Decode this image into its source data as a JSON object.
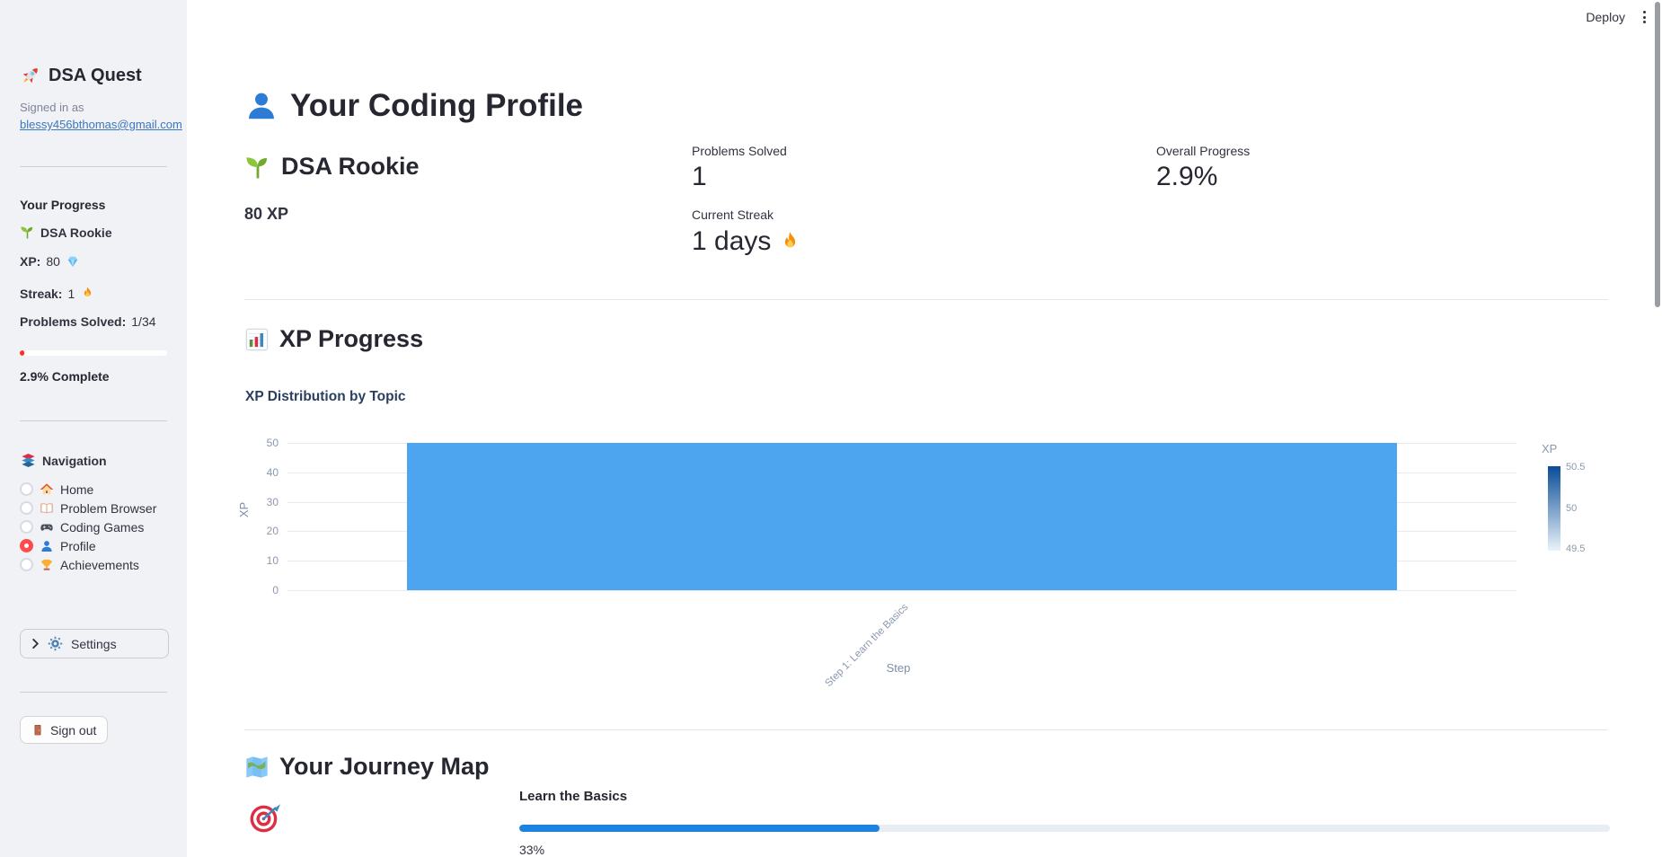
{
  "toolbar": {
    "deploy_label": "Deploy"
  },
  "sidebar": {
    "title": "DSA Quest",
    "signed_in_label": "Signed in as",
    "email": "blessy456bthomas@gmail.com",
    "progress": {
      "heading": "Your Progress",
      "rank": "DSA Rookie",
      "xp_label": "XP:",
      "xp_value": "80",
      "streak_label": "Streak:",
      "streak_value": "1",
      "problems_label": "Problems Solved:",
      "problems_value": "1/34",
      "progress_pct": 2.9,
      "complete_text": "2.9% Complete"
    },
    "navigation": {
      "heading": "Navigation",
      "items": [
        {
          "label": "Home",
          "selected": false
        },
        {
          "label": "Problem Browser",
          "selected": false
        },
        {
          "label": "Coding Games",
          "selected": false
        },
        {
          "label": "Profile",
          "selected": true
        },
        {
          "label": "Achievements",
          "selected": false
        }
      ]
    },
    "settings_label": "Settings",
    "signout_label": "Sign out"
  },
  "main": {
    "page_title": "Your Coding Profile",
    "rank_title": "DSA Rookie",
    "xp_total": "80 XP",
    "metrics": {
      "problems": {
        "label": "Problems Solved",
        "value": "1"
      },
      "streak": {
        "label": "Current Streak",
        "value": "1 days"
      },
      "overall": {
        "label": "Overall Progress",
        "value": "2.9%"
      }
    },
    "xp_section_heading": "XP Progress",
    "journey": {
      "heading": "Your Journey Map",
      "step_label": "Learn the Basics",
      "pct_label": "33%",
      "progress_pct": 33
    }
  },
  "chart_data": {
    "type": "bar",
    "title": "XP Distribution by Topic",
    "categories": [
      "Step 1: Learn the Basics"
    ],
    "values": [
      50
    ],
    "xlabel": "Step",
    "ylabel": "XP",
    "ylim": [
      0,
      50
    ],
    "yticks": [
      0,
      10,
      20,
      30,
      40,
      50
    ],
    "grid": true,
    "bar_color": "#4da5f0",
    "colorbar": {
      "title": "XP",
      "tick_labels": [
        "50.5",
        "50",
        "49.5"
      ],
      "top_color": "#0a4c97",
      "bottom_color": "#eaf3fb"
    }
  }
}
